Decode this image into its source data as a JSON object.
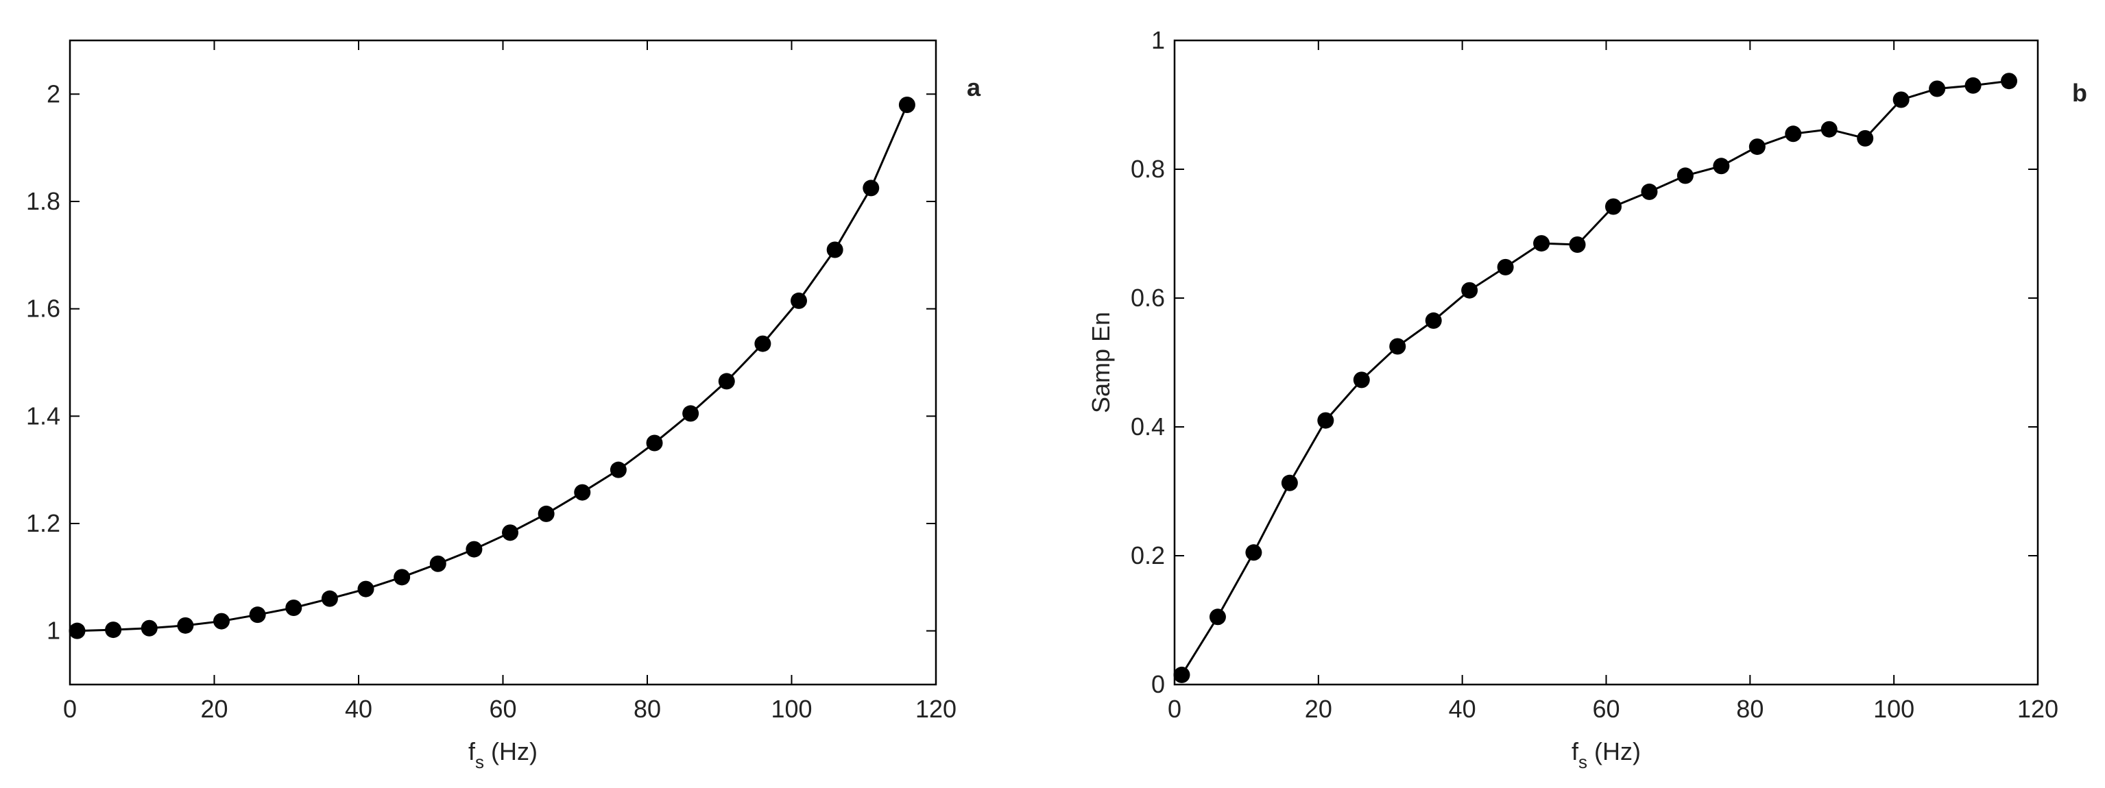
{
  "chart_data": [
    {
      "type": "line",
      "panel_label": "a",
      "xlabel": {
        "main": "f",
        "sub": "s",
        "unit": "(Hz)"
      },
      "x": [
        1,
        6,
        11,
        16,
        21,
        26,
        31,
        36,
        41,
        46,
        51,
        56,
        61,
        66,
        71,
        76,
        81,
        86,
        91,
        96,
        101,
        106,
        111,
        116
      ],
      "values": [
        1.0,
        1.002,
        1.005,
        1.01,
        1.018,
        1.03,
        1.043,
        1.06,
        1.078,
        1.1,
        1.125,
        1.152,
        1.183,
        1.218,
        1.258,
        1.3,
        1.35,
        1.405,
        1.465,
        1.535,
        1.615,
        1.71,
        1.825,
        1.98
      ],
      "color": "#000000",
      "xlim": [
        0,
        120
      ],
      "xticks": [
        0,
        20,
        40,
        60,
        80,
        100,
        120
      ],
      "ylim": [
        0.9,
        2.1
      ],
      "yticks": [
        1,
        1.2,
        1.4,
        1.6,
        1.8,
        2
      ]
    },
    {
      "type": "line",
      "panel_label": "b",
      "ylabel": "Samp En",
      "xlabel": {
        "main": "f",
        "sub": "s",
        "unit": "(Hz)"
      },
      "x": [
        1,
        6,
        11,
        16,
        21,
        26,
        31,
        36,
        41,
        46,
        51,
        56,
        61,
        66,
        71,
        76,
        81,
        86,
        91,
        96,
        101,
        106,
        111,
        116
      ],
      "values": [
        0.015,
        0.105,
        0.205,
        0.313,
        0.41,
        0.473,
        0.525,
        0.565,
        0.612,
        0.648,
        0.685,
        0.683,
        0.742,
        0.765,
        0.79,
        0.805,
        0.835,
        0.855,
        0.862,
        0.848,
        0.908,
        0.925,
        0.93,
        0.937
      ],
      "color": "#000000",
      "xlim": [
        0,
        120
      ],
      "xticks": [
        0,
        20,
        40,
        60,
        80,
        100,
        120
      ],
      "ylim": [
        0,
        1
      ],
      "yticks": [
        0,
        0.2,
        0.4,
        0.6,
        0.8,
        1
      ]
    }
  ]
}
